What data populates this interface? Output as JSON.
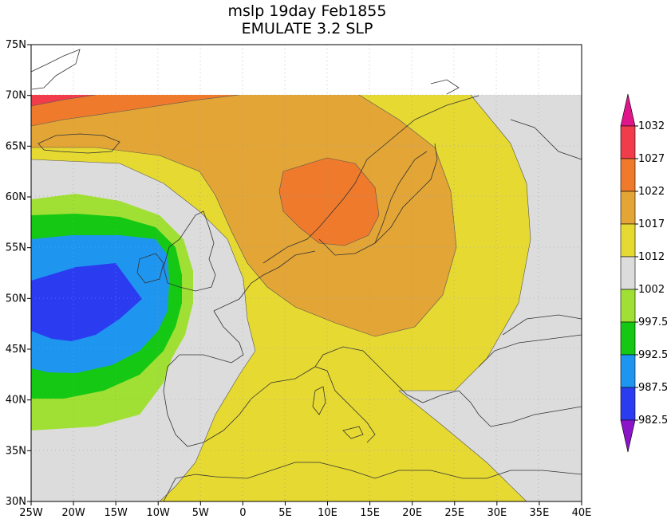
{
  "title": {
    "line1": "mslp  19day Feb1855",
    "line2": "EMULATE 3.2 SLP"
  },
  "axes": {
    "x_ticks": [
      "25W",
      "20W",
      "15W",
      "10W",
      "5W",
      "0",
      "5E",
      "10E",
      "15E",
      "20E",
      "25E",
      "30E",
      "35E",
      "40E"
    ],
    "y_ticks": [
      "75N",
      "70N",
      "65N",
      "60N",
      "55N",
      "50N",
      "45N",
      "40N",
      "35N",
      "30N"
    ],
    "x_range_deg_lon": [
      -25,
      40
    ],
    "y_range_deg_lat": [
      30,
      75
    ],
    "grid": "dotted"
  },
  "colorbar": {
    "labels": [
      "1032",
      "1027",
      "1022",
      "1017",
      "1012",
      "1002",
      "997.5",
      "992.5",
      "987.5",
      "982.5"
    ],
    "colors": {
      "above_1032": "#e0158a",
      "c1032": "#f03c4b",
      "c1027": "#f07a2c",
      "c1022": "#e3a535",
      "c1017": "#e6d932",
      "c1012": "#dcdcdc",
      "c1002": "#a0e035",
      "c997": "#14c814",
      "c992": "#1e96f0",
      "c987": "#2b3cf0",
      "below_982": "#8c14c8"
    }
  },
  "chart_data": {
    "type": "heatmap",
    "variable": "mslp",
    "units_levels": [
      982.5,
      987.5,
      992.5,
      997.5,
      1002,
      1012,
      1017,
      1022,
      1027,
      1032
    ],
    "lon_range": [
      -25,
      40
    ],
    "lat_range": [
      30,
      75
    ],
    "data_lat_max": 70
  }
}
